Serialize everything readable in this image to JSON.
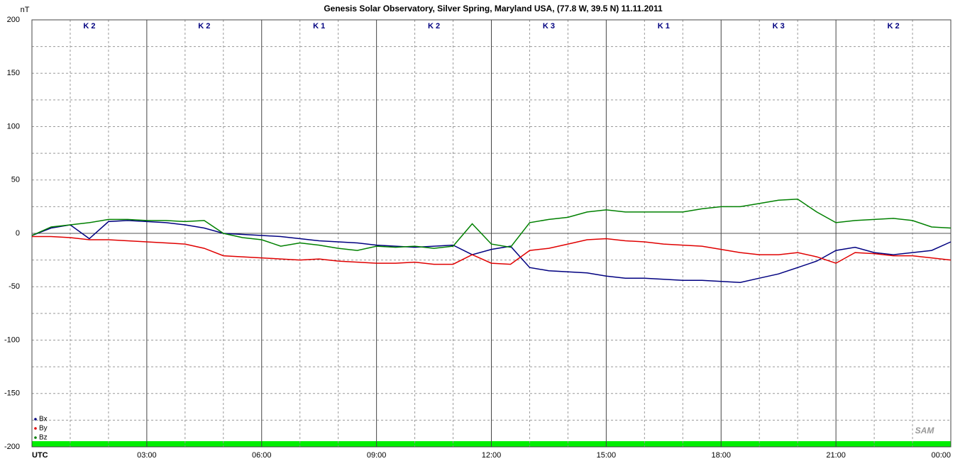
{
  "chart_data": {
    "type": "line",
    "title": "Genesis Solar Observatory, Silver Spring, Maryland USA, (77.8 W, 39.5 N)  11.11.2011",
    "y_label": "nT",
    "logo": "SAM",
    "k_indices": [
      "K 2",
      "K 2",
      "K 1",
      "K 2",
      "K 3",
      "K 1",
      "K 3",
      "K 2"
    ],
    "x": [
      0,
      0.5,
      1,
      1.5,
      2,
      2.5,
      3,
      3.5,
      4,
      4.5,
      5,
      5.5,
      6,
      6.5,
      7,
      7.5,
      8,
      8.5,
      9,
      9.5,
      10,
      10.5,
      11,
      11.5,
      12,
      12.5,
      13,
      13.5,
      14,
      14.5,
      15,
      15.5,
      16,
      16.5,
      17,
      17.5,
      18,
      18.5,
      19,
      19.5,
      20,
      20.5,
      21,
      21.5,
      22,
      22.5,
      23,
      23.5,
      24
    ],
    "series": [
      {
        "name": "Bx",
        "color": "#000080",
        "values": [
          -2,
          5,
          8,
          -5,
          11,
          12,
          11,
          10,
          8,
          5,
          0,
          -1,
          -2,
          -3,
          -5,
          -7,
          -8,
          -9,
          -11,
          -12,
          -13,
          -12,
          -11,
          -20,
          -15,
          -12,
          -32,
          -35,
          -36,
          -37,
          -40,
          -42,
          -42,
          -43,
          -44,
          -44,
          -45,
          -46,
          -42,
          -38,
          -32,
          -26,
          -16,
          -13,
          -18,
          -20,
          -18,
          -16,
          -8
        ]
      },
      {
        "name": "By",
        "color": "#e00000",
        "values": [
          -3,
          -3,
          -4,
          -6,
          -6,
          -7,
          -8,
          -9,
          -10,
          -14,
          -21,
          -22,
          -23,
          -24,
          -25,
          -24,
          -26,
          -27,
          -28,
          -28,
          -27,
          -29,
          -29,
          -20,
          -28,
          -29,
          -16,
          -14,
          -10,
          -6,
          -5,
          -7,
          -8,
          -10,
          -11,
          -12,
          -15,
          -18,
          -20,
          -20,
          -18,
          -22,
          -28,
          -18,
          -19,
          -21,
          -21,
          -23,
          -25
        ]
      },
      {
        "name": "Bz",
        "color": "#008000",
        "values": [
          -2,
          6,
          8,
          10,
          13,
          13,
          12,
          12,
          11,
          12,
          0,
          -4,
          -6,
          -12,
          -9,
          -11,
          -14,
          -16,
          -12,
          -13,
          -12,
          -14,
          -12,
          9,
          -10,
          -13,
          10,
          13,
          15,
          20,
          22,
          20,
          20,
          20,
          20,
          23,
          25,
          25,
          28,
          31,
          32,
          20,
          10,
          12,
          13,
          14,
          12,
          6,
          5
        ]
      }
    ],
    "xlim": [
      0,
      24
    ],
    "xticks": [
      {
        "value": 0,
        "label": "UTC"
      },
      {
        "value": 3,
        "label": "03:00"
      },
      {
        "value": 6,
        "label": "06:00"
      },
      {
        "value": 9,
        "label": "09:00"
      },
      {
        "value": 12,
        "label": "12:00"
      },
      {
        "value": 15,
        "label": "15:00"
      },
      {
        "value": 18,
        "label": "18:00"
      },
      {
        "value": 21,
        "label": "21:00"
      },
      {
        "value": 24,
        "label": "00:00"
      }
    ],
    "ylim": [
      -200,
      200
    ],
    "yticks": [
      -200,
      -150,
      -100,
      -50,
      0,
      50,
      100,
      150,
      200
    ],
    "grid": true
  }
}
